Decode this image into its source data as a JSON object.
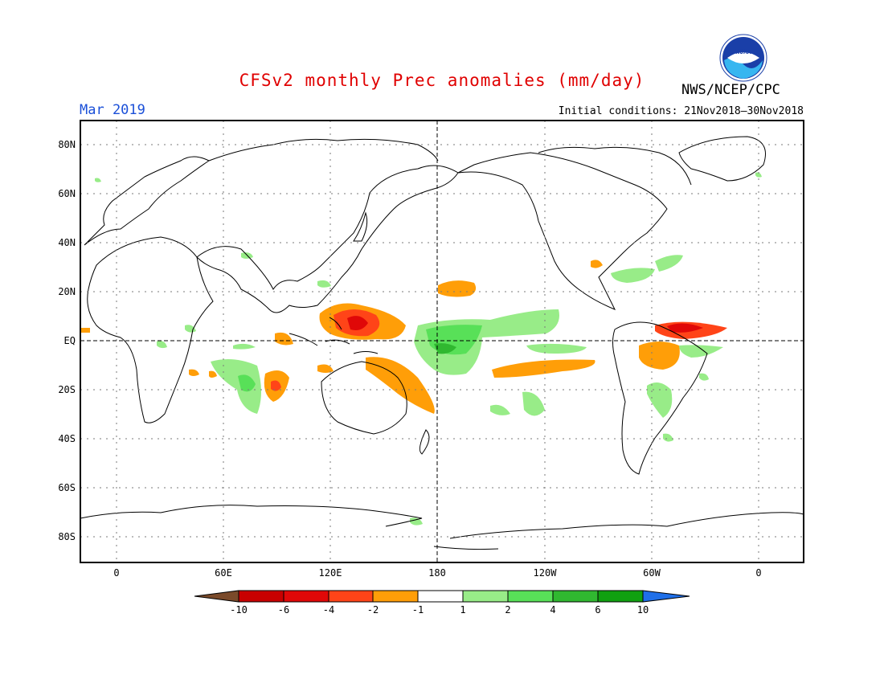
{
  "header": {
    "title": "CFSv2 monthly Prec anomalies (mm/day)",
    "month": "Mar 2019",
    "initial_conditions": "Initial conditions: 21Nov2018–30Nov2018",
    "agency": "NWS/NCEP/CPC",
    "logo_text": "NOAA"
  },
  "axes": {
    "lat_labels": [
      "80N",
      "60N",
      "40N",
      "20N",
      "EQ",
      "20S",
      "40S",
      "60S",
      "80S"
    ],
    "lon_labels": [
      "0",
      "60E",
      "120E",
      "180",
      "120W",
      "60W",
      "0"
    ]
  },
  "legend": {
    "labels": [
      "-10",
      "-6",
      "-4",
      "-2",
      "-1",
      "1",
      "2",
      "4",
      "6",
      "10"
    ],
    "colors": [
      "#7a4a2a",
      "#c80000",
      "#e00808",
      "#ff4418",
      "#ff9e08",
      "#ffffff",
      "#98ec88",
      "#58e058",
      "#30b830",
      "#10a010",
      "#1f6fe8"
    ]
  },
  "colors": {
    "title": "#e00000",
    "month": "#1a4fd8"
  }
}
